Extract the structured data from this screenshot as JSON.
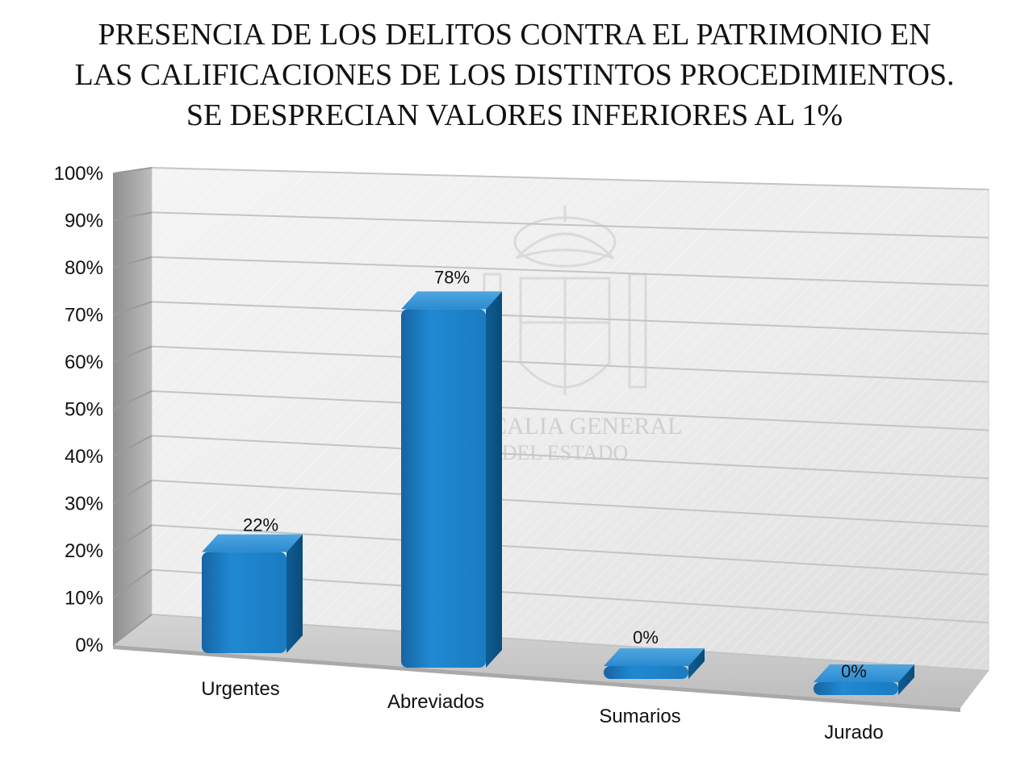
{
  "chart_data": {
    "type": "bar",
    "title_lines": [
      "PRESENCIA DE LOS DELITOS CONTRA EL PATRIMONIO EN",
      "LAS CALIFICACIONES DE LOS DISTINTOS PROCEDIMIENTOS.",
      "SE DESPRECIAN VALORES INFERIORES AL 1%"
    ],
    "categories": [
      "Urgentes",
      "Abreviados",
      "Sumarios",
      "Jurado"
    ],
    "values": [
      22,
      78,
      0,
      0
    ],
    "data_labels": [
      "22%",
      "78%",
      "0%",
      "0%"
    ],
    "y_ticks": [
      "0%",
      "10%",
      "20%",
      "30%",
      "40%",
      "50%",
      "60%",
      "70%",
      "80%",
      "90%",
      "100%"
    ],
    "ylim": [
      0,
      100
    ],
    "grid": true,
    "bar_color": "#1a7cc1",
    "watermark_lines": [
      "FISCALIA GENERAL",
      "DEL ESTADO"
    ]
  }
}
